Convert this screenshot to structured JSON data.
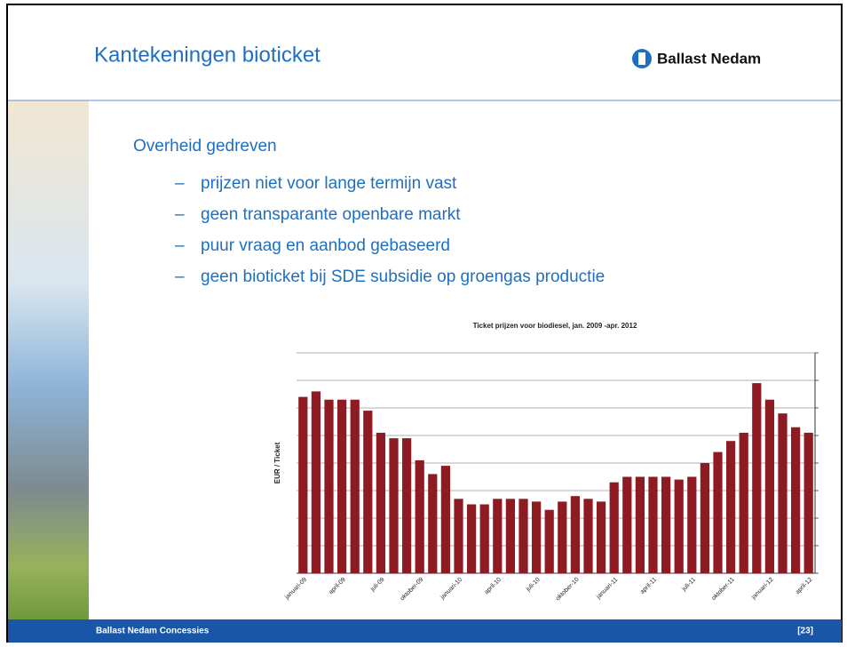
{
  "header": {
    "title": "Kantekeningen bioticket",
    "logo": "Ballast Nedam"
  },
  "heading": "Overheid gedreven",
  "bullets": [
    "prijzen niet voor lange termijn vast",
    "geen transparante openbare markt",
    "puur vraag en aanbod gebaseerd",
    "geen bioticket bij SDE subsidie op groengas productie"
  ],
  "bullet_marker": "–",
  "chart_data": {
    "type": "bar",
    "title": "Ticket prijzen voor biodiesel, jan. 2009 -apr. 2012",
    "y_label": "EUR / Ticket",
    "categories": [
      "januari-09",
      null,
      null,
      "april-09",
      null,
      null,
      "juli-09",
      null,
      null,
      "oktober-09",
      null,
      null,
      "januari-10",
      null,
      null,
      "april-10",
      null,
      null,
      "juli-10",
      null,
      null,
      "oktober-10",
      null,
      null,
      "januari-11",
      null,
      null,
      "april-11",
      null,
      null,
      "juli-11",
      null,
      null,
      "oktober-11",
      null,
      null,
      "januari-12",
      null,
      null,
      "april-12"
    ],
    "values": [
      6.4,
      6.6,
      6.3,
      6.3,
      6.3,
      5.9,
      5.1,
      4.9,
      4.9,
      4.1,
      3.6,
      3.9,
      2.7,
      2.5,
      2.5,
      2.7,
      2.7,
      2.7,
      2.6,
      2.3,
      2.6,
      2.8,
      2.7,
      2.6,
      3.3,
      3.5,
      3.5,
      3.5,
      3.5,
      3.4,
      3.5,
      4.0,
      4.4,
      4.8,
      5.1,
      6.9,
      6.3,
      5.8,
      5.3,
      5.1
    ],
    "color": "#8e1b22",
    "ylim": [
      0,
      8
    ],
    "yticks": [
      0,
      1,
      2,
      3,
      4,
      5,
      6,
      7,
      8
    ],
    "grid": true
  },
  "footer": {
    "left": "Ballast Nedam Concessies",
    "page": "[23]"
  }
}
